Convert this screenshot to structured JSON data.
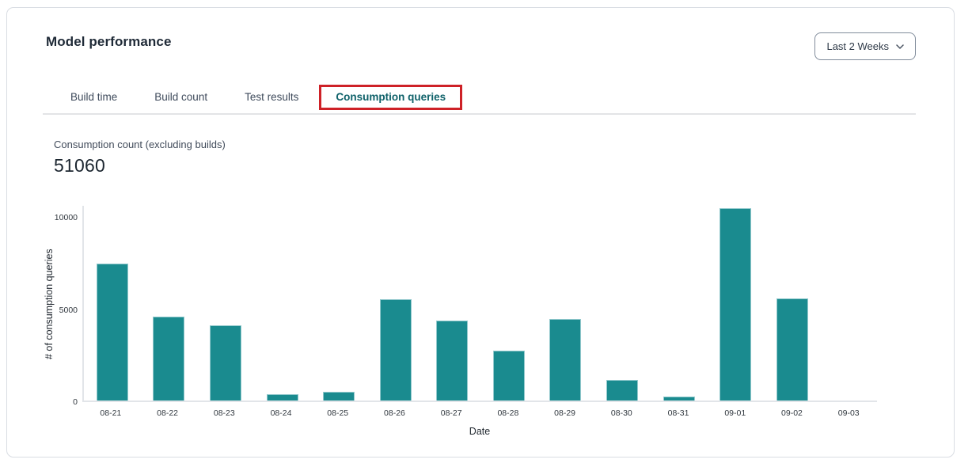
{
  "header": {
    "title": "Model performance",
    "range_selector": {
      "label": "Last 2 Weeks",
      "icon": "chevron-down-icon"
    }
  },
  "tabs": [
    {
      "label": "Build time",
      "active": false
    },
    {
      "label": "Build count",
      "active": false
    },
    {
      "label": "Test results",
      "active": false
    },
    {
      "label": "Consumption queries",
      "active": true
    }
  ],
  "annotation": {
    "type": "highlight-box",
    "target": "Consumption queries",
    "color": "#CE2127"
  },
  "metric": {
    "label": "Consumption count (excluding builds)",
    "value": "51060"
  },
  "chart_data": {
    "type": "bar",
    "categories": [
      "08-21",
      "08-22",
      "08-23",
      "08-24",
      "08-25",
      "08-26",
      "08-27",
      "08-28",
      "08-29",
      "08-30",
      "08-31",
      "09-01",
      "09-02",
      "09-03"
    ],
    "values": [
      7430,
      4570,
      4060,
      340,
      470,
      5480,
      4350,
      2690,
      4400,
      1110,
      210,
      10420,
      5530,
      0
    ],
    "title": "",
    "xlabel": "Date",
    "ylabel": "# of consumption queries",
    "yticks": [
      0,
      5000,
      10000
    ],
    "ylim": [
      0,
      10640
    ],
    "grid": false,
    "legend": "none",
    "bar_color": "#1A8B8F"
  },
  "colors": {
    "accent_teal": "#0E6169",
    "bar_fill": "#1A8B8F",
    "annotation_red": "#CE2127",
    "card_border": "#D9DDE3"
  }
}
